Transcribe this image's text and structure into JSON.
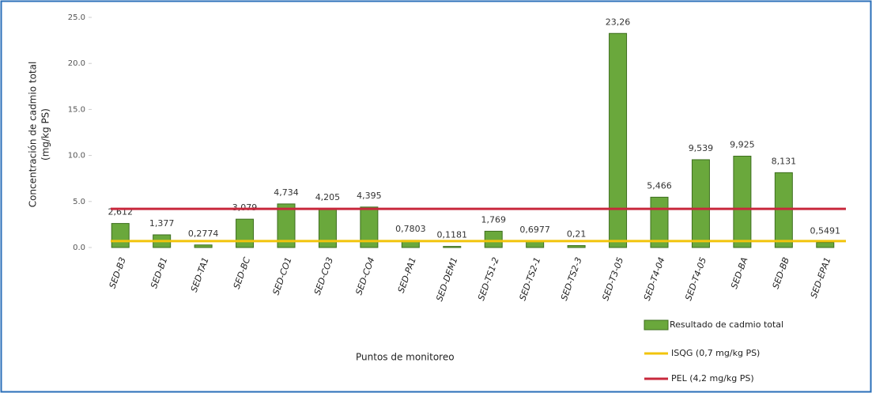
{
  "chart_data": {
    "type": "bar",
    "y_label": [
      "Concentración de cadmio total",
      "(mg/kg PS)"
    ],
    "x_label": "Puntos de monitoreo",
    "categories": [
      "SED-B3",
      "SED-B1",
      "SED-TA1",
      "SED-BC",
      "SED-CO1",
      "SED-CO3",
      "SED-CO4",
      "SED-PA1",
      "SED-DEM1",
      "SED-TS1-2",
      "SED-TS2-1",
      "SED-TS2-3",
      "SED-T3-05",
      "SED-T4-04",
      "SED-T4-05",
      "SED-BA",
      "SED-BB",
      "SED-EPA1"
    ],
    "series": [
      {
        "name": "Resultado de cadmio total",
        "color": "#6aa83c",
        "values": [
          2.612,
          1.377,
          0.2774,
          3.079,
          4.734,
          4.205,
          4.395,
          0.7803,
          0.1181,
          1.769,
          0.6977,
          0.21,
          23.26,
          5.466,
          9.539,
          9.925,
          8.131,
          0.5491
        ],
        "value_labels": [
          "2,612",
          "1,377",
          "0,2774",
          "3,079",
          "4,734",
          "4,205",
          "4,395",
          "0,7803",
          "0,1181",
          "1,769",
          "0,6977",
          "0,21",
          "23,26",
          "5,466",
          "9,539",
          "9,925",
          "8,131",
          "0,5491"
        ]
      }
    ],
    "reference_lines": [
      {
        "name": "ISQG (0,7 mg/kg PS)",
        "value": 0.7,
        "color": "#f2c40c"
      },
      {
        "name": "PEL (4,2 mg/kg PS)",
        "value": 4.2,
        "color": "#c8283c"
      }
    ],
    "ylim": [
      0,
      25
    ],
    "yticks": [
      {
        "value": 0,
        "label": "0.0"
      },
      {
        "value": 5,
        "label": "5.0"
      },
      {
        "value": 10,
        "label": "10.0"
      },
      {
        "value": 15,
        "label": "15.0"
      },
      {
        "value": 20,
        "label": "20.0"
      },
      {
        "value": 25,
        "label": "25.0"
      }
    ],
    "grid": false
  }
}
